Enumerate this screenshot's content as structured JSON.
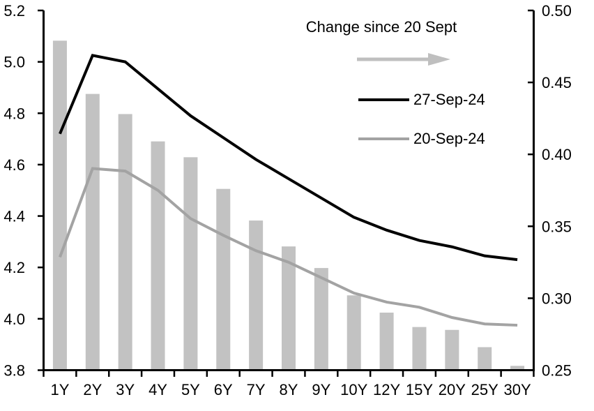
{
  "chart_data": {
    "type": "combo-bar-line",
    "title": "",
    "categories": [
      "1Y",
      "2Y",
      "3Y",
      "4Y",
      "5Y",
      "6Y",
      "7Y",
      "8Y",
      "9Y",
      "10Y",
      "12Y",
      "15Y",
      "20Y",
      "25Y",
      "30Y"
    ],
    "bar_series": {
      "name": "Change since 20 Sept",
      "axis": "right",
      "color": "#c2c2c2",
      "values": [
        0.479,
        0.442,
        0.428,
        0.409,
        0.398,
        0.376,
        0.354,
        0.336,
        0.321,
        0.302,
        0.29,
        0.28,
        0.278,
        0.266,
        0.253
      ]
    },
    "line_series": [
      {
        "name": "27-Sep-24",
        "axis": "left",
        "color": "#000000",
        "values": [
          4.72,
          5.025,
          5.0,
          4.895,
          4.79,
          4.705,
          4.62,
          4.545,
          4.47,
          4.395,
          4.345,
          4.305,
          4.28,
          4.245,
          4.23
        ]
      },
      {
        "name": "20-Sep-24",
        "axis": "left",
        "color": "#a3a3a3",
        "values": [
          4.24,
          4.585,
          4.575,
          4.5,
          4.39,
          4.325,
          4.265,
          4.22,
          4.16,
          4.1,
          4.065,
          4.045,
          4.005,
          3.98,
          3.975
        ]
      }
    ],
    "left_axis": {
      "min": 3.8,
      "max": 5.2,
      "ticks": [
        "3.8",
        "4.0",
        "4.2",
        "4.4",
        "4.6",
        "4.8",
        "5.0",
        "5.2"
      ]
    },
    "right_axis": {
      "min": 0.25,
      "max": 0.5,
      "ticks": [
        "0.25",
        "0.30",
        "0.35",
        "0.40",
        "0.45",
        "0.50"
      ]
    },
    "legend": {
      "title": "Change since 20 Sept",
      "arrow_color": "#bfbfbf",
      "entries": [
        "27-Sep-24",
        "20-Sep-24"
      ]
    },
    "grid": "off",
    "axis_color": "#000000"
  }
}
